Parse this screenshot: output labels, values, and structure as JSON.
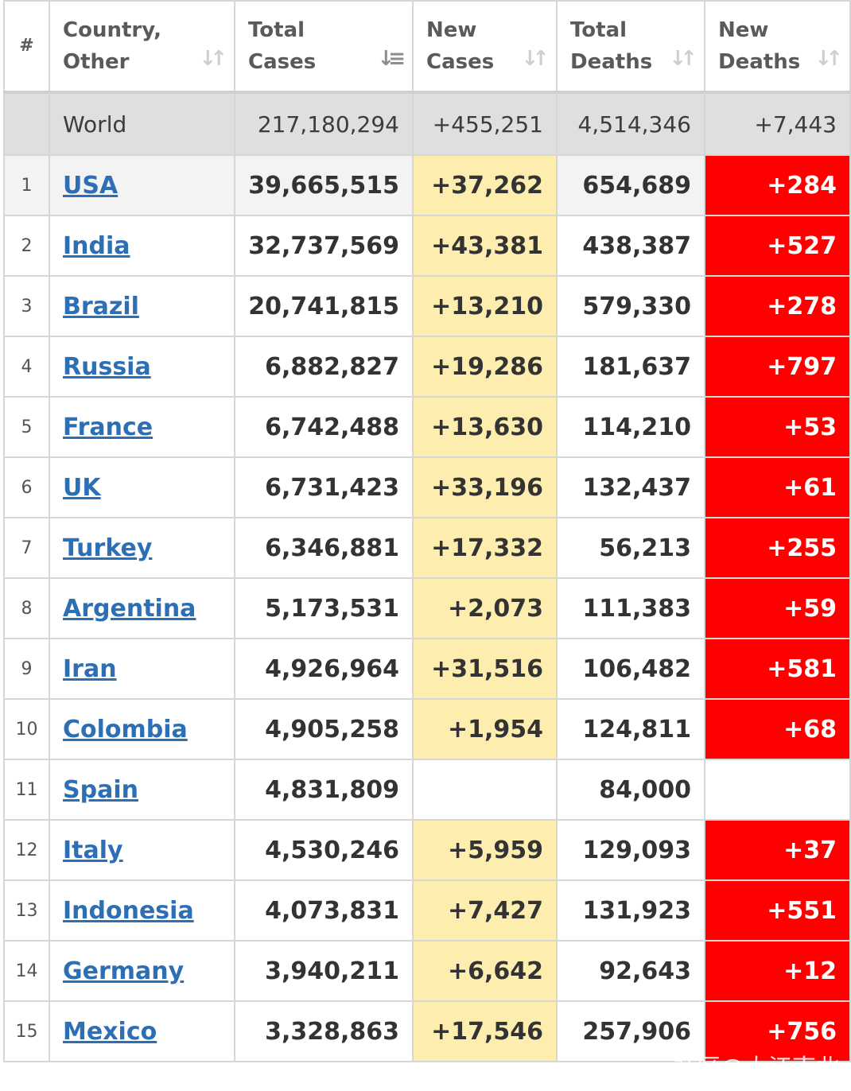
{
  "headers": {
    "rank": "#",
    "country_l1": "Country,",
    "country_l2": "Other",
    "total_cases_l1": "Total",
    "total_cases_l2": "Cases",
    "new_cases_l1": "New",
    "new_cases_l2": "Cases",
    "total_deaths_l1": "Total",
    "total_deaths_l2": "Deaths",
    "new_deaths_l1": "New",
    "new_deaths_l2": "Deaths"
  },
  "sort_icons": {
    "inactive": "sort-icon",
    "active": "sort-desc-icon"
  },
  "world": {
    "label": "World",
    "total_cases": "217,180,294",
    "new_cases": "+455,251",
    "total_deaths": "4,514,346",
    "new_deaths": "+7,443"
  },
  "rows": [
    {
      "rank": "1",
      "country": "USA",
      "total_cases": "39,665,515",
      "new_cases": "+37,262",
      "total_deaths": "654,689",
      "new_deaths": "+284"
    },
    {
      "rank": "2",
      "country": "India",
      "total_cases": "32,737,569",
      "new_cases": "+43,381",
      "total_deaths": "438,387",
      "new_deaths": "+527"
    },
    {
      "rank": "3",
      "country": "Brazil",
      "total_cases": "20,741,815",
      "new_cases": "+13,210",
      "total_deaths": "579,330",
      "new_deaths": "+278"
    },
    {
      "rank": "4",
      "country": "Russia",
      "total_cases": "6,882,827",
      "new_cases": "+19,286",
      "total_deaths": "181,637",
      "new_deaths": "+797"
    },
    {
      "rank": "5",
      "country": "France",
      "total_cases": "6,742,488",
      "new_cases": "+13,630",
      "total_deaths": "114,210",
      "new_deaths": "+53"
    },
    {
      "rank": "6",
      "country": "UK",
      "total_cases": "6,731,423",
      "new_cases": "+33,196",
      "total_deaths": "132,437",
      "new_deaths": "+61"
    },
    {
      "rank": "7",
      "country": "Turkey",
      "total_cases": "6,346,881",
      "new_cases": "+17,332",
      "total_deaths": "56,213",
      "new_deaths": "+255"
    },
    {
      "rank": "8",
      "country": "Argentina",
      "total_cases": "5,173,531",
      "new_cases": "+2,073",
      "total_deaths": "111,383",
      "new_deaths": "+59"
    },
    {
      "rank": "9",
      "country": "Iran",
      "total_cases": "4,926,964",
      "new_cases": "+31,516",
      "total_deaths": "106,482",
      "new_deaths": "+581"
    },
    {
      "rank": "10",
      "country": "Colombia",
      "total_cases": "4,905,258",
      "new_cases": "+1,954",
      "total_deaths": "124,811",
      "new_deaths": "+68"
    },
    {
      "rank": "11",
      "country": "Spain",
      "total_cases": "4,831,809",
      "new_cases": "",
      "total_deaths": "84,000",
      "new_deaths": ""
    },
    {
      "rank": "12",
      "country": "Italy",
      "total_cases": "4,530,246",
      "new_cases": "+5,959",
      "total_deaths": "129,093",
      "new_deaths": "+37"
    },
    {
      "rank": "13",
      "country": "Indonesia",
      "total_cases": "4,073,831",
      "new_cases": "+7,427",
      "total_deaths": "131,923",
      "new_deaths": "+551"
    },
    {
      "rank": "14",
      "country": "Germany",
      "total_cases": "3,940,211",
      "new_cases": "+6,642",
      "total_deaths": "92,643",
      "new_deaths": "+12"
    },
    {
      "rank": "15",
      "country": "Mexico",
      "total_cases": "3,328,863",
      "new_cases": "+17,546",
      "total_deaths": "257,906",
      "new_deaths": "+756"
    }
  ],
  "watermark": "社区@大江南北",
  "colors": {
    "new_cases_bg": "#fdeeb0",
    "new_deaths_bg": "#ff0000",
    "link": "#2d6fb4",
    "world_row_bg": "#dfdfdf"
  }
}
